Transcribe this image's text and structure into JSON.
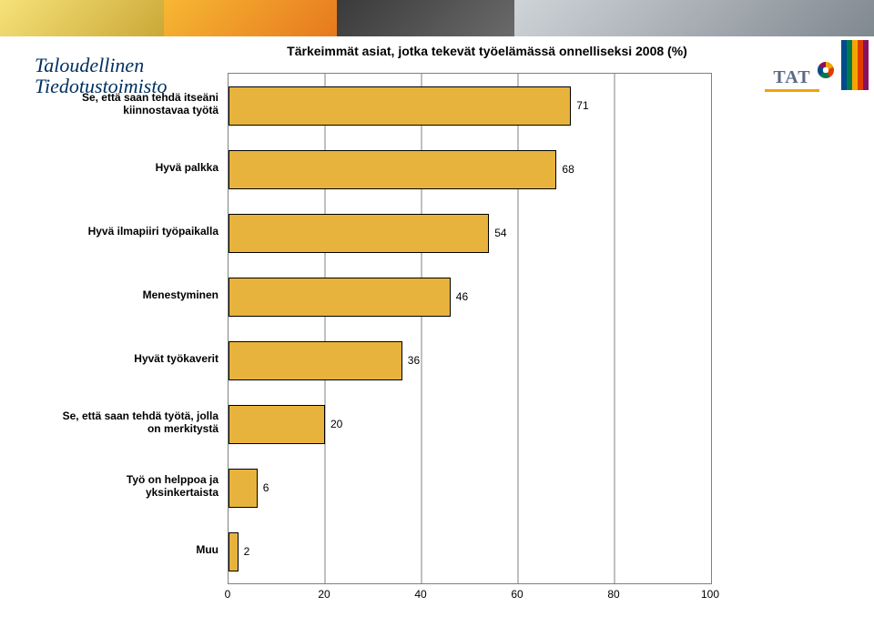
{
  "brand": {
    "line1": "Taloudellinen",
    "line2": "Tiedotustoimisto"
  },
  "tat_logo_text": "TAT",
  "chart": {
    "type": "bar",
    "orientation": "horizontal",
    "title": "Tärkeimmät asiat, jotka tekevät työelämässä onnelliseksi 2008 (%)",
    "title_fontsize": 14,
    "xlim": [
      0,
      100
    ],
    "xtick_step": 20,
    "xticks": [
      "0",
      "20",
      "40",
      "60",
      "80",
      "100"
    ],
    "bar_color": "#e8b33c",
    "bar_border_color": "#000000",
    "plot_border_color": "#808080",
    "grid_color": "#808080",
    "background_color": "#ffffff",
    "label_fontsize": 12,
    "categories": [
      "Se, että saan tehdä itseäni kiinnostavaa työtä",
      "Hyvä palkka",
      "Hyvä ilmapiiri työpaikalla",
      "Menestyminen",
      "Hyvät työkaverit",
      "Se, että saan tehdä työtä, jolla on merkitystä",
      "Työ on helppoa ja yksinkertaista",
      "Muu"
    ],
    "values": [
      71,
      68,
      54,
      46,
      36,
      20,
      6,
      2
    ]
  },
  "right_strip_colors": [
    "#004b8d",
    "#007a4d",
    "#f6a500",
    "#e03c00",
    "#8a1060"
  ]
}
